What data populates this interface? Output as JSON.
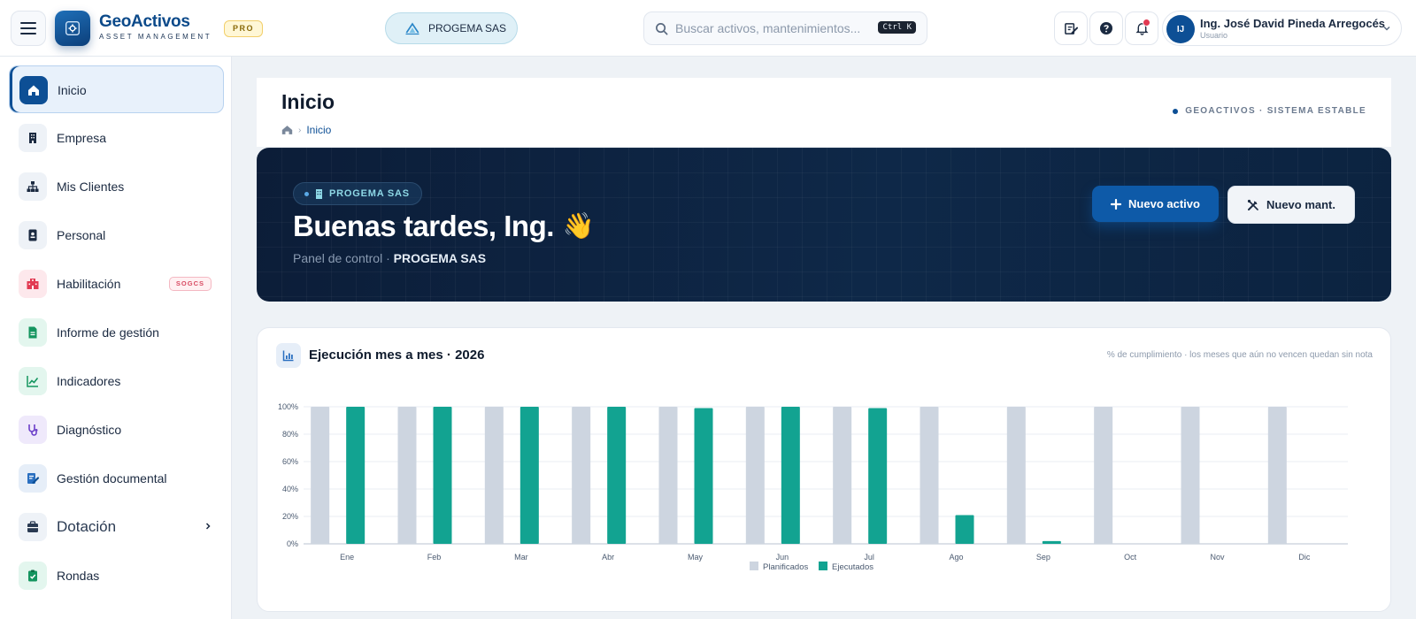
{
  "topbar": {
    "brand_name": "GeoActivos",
    "brand_sub": "ASSET MANAGEMENT",
    "pro_badge": "PRO",
    "company_pill": "PROGEMA SAS",
    "search_placeholder": "Buscar activos, mantenimientos...",
    "search_shortcut": "Ctrl K",
    "icons": [
      "menu-icon",
      "compose-icon",
      "help-icon",
      "bell-icon",
      "chevron-down-icon"
    ],
    "user": {
      "initials": "IJ",
      "name": "Ing. José David Pineda Arregocés",
      "role": "Usuario"
    }
  },
  "sidebar": {
    "items": [
      {
        "label": "Inicio",
        "icon": "home-icon",
        "active": true
      },
      {
        "label": "Empresa",
        "icon": "building-icon"
      },
      {
        "label": "Mis Clientes",
        "icon": "hierarchy-icon"
      },
      {
        "label": "Personal",
        "icon": "id-badge-icon"
      },
      {
        "label": "Habilitación",
        "icon": "hospital-icon",
        "badge": "SOGCS"
      },
      {
        "label": "Informe de gestión",
        "icon": "report-icon"
      },
      {
        "label": "Indicadores",
        "icon": "trend-icon"
      },
      {
        "label": "Diagnóstico",
        "icon": "stethoscope-icon"
      },
      {
        "label": "Gestión documental",
        "icon": "document-edit-icon"
      },
      {
        "label": "Dotación",
        "icon": "box-icon",
        "expandable": true
      },
      {
        "label": "Rondas",
        "icon": "clipboard-check-icon"
      }
    ]
  },
  "page_header": {
    "title": "Inicio",
    "breadcrumb": "Inicio",
    "system_status": "GEOACTIVOS · SISTEMA ESTABLE"
  },
  "hero": {
    "company": "PROGEMA SAS",
    "greeting": "Buenas tardes, Ing.",
    "wave": "👋",
    "subtitle_prefix": "Panel de control · ",
    "subtitle_company": "PROGEMA SAS",
    "new_asset_button": "Nuevo activo",
    "new_maintenance_button": "Nuevo mant."
  },
  "chart_card": {
    "title": "Ejecución mes a mes · 2026",
    "note": "% de cumplimiento · los meses que aún no vencen quedan sin nota"
  },
  "chart_data": {
    "type": "bar",
    "categories": [
      "Ene",
      "Feb",
      "Mar",
      "Abr",
      "May",
      "Jun",
      "Jul",
      "Ago",
      "Sep",
      "Oct",
      "Nov",
      "Dic"
    ],
    "series": [
      {
        "name": "Planificados",
        "values": [
          100,
          100,
          100,
          100,
          100,
          100,
          100,
          100,
          100,
          100,
          100,
          100
        ],
        "color": "#cdd5e0"
      },
      {
        "name": "Ejecutados",
        "values": [
          100,
          100,
          100,
          100,
          99,
          100,
          99,
          21,
          2,
          0,
          0,
          0
        ],
        "color": "#12a391"
      }
    ],
    "y_ticks": [
      "0%",
      "20%",
      "40%",
      "60%",
      "80%",
      "100%"
    ],
    "ylim": [
      0,
      100
    ],
    "grid": true,
    "legend": "bottom-center"
  },
  "colors": {
    "brand": "#0c4a8a",
    "primary_button": "#0e5aa8",
    "hero_bg": "#0c1d38",
    "executed": "#12a391",
    "planned": "#cdd5e0"
  }
}
